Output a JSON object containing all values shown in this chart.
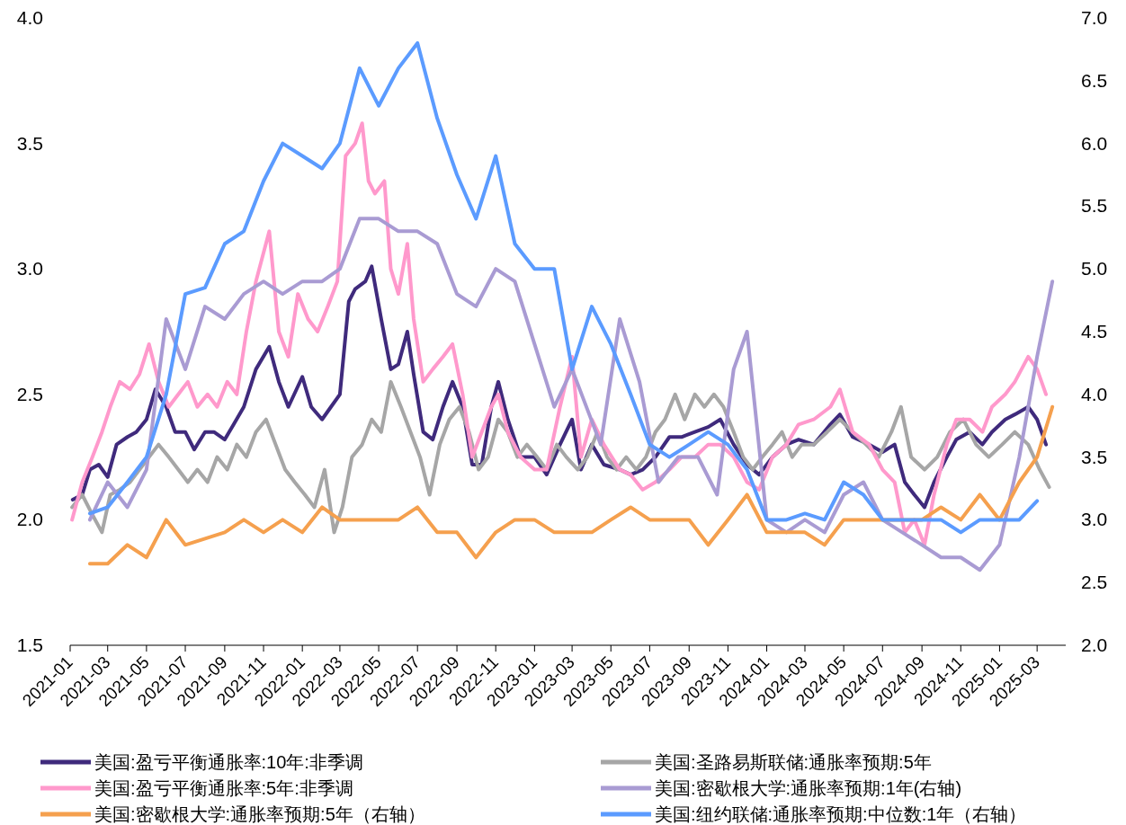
{
  "chart_data": {
    "type": "line",
    "xlim": [
      "2021-01-01",
      "2025-04-15"
    ],
    "xticks": [
      "2021-01",
      "2021-03",
      "2021-05",
      "2021-07",
      "2021-09",
      "2021-11",
      "2022-01",
      "2022-03",
      "2022-05",
      "2022-07",
      "2022-09",
      "2022-11",
      "2023-01",
      "2023-03",
      "2023-05",
      "2023-07",
      "2023-09",
      "2023-11",
      "2024-01",
      "2024-03",
      "2024-05",
      "2024-07",
      "2024-09",
      "2024-11",
      "2025-01",
      "2025-03"
    ],
    "ylim": [
      1.5,
      4.0
    ],
    "yticks": [
      {
        "value": 1.5,
        "label": "1.5"
      },
      {
        "value": 2,
        "label": "2.0"
      },
      {
        "value": 2.5,
        "label": "2.5"
      },
      {
        "value": 3,
        "label": "3.0"
      },
      {
        "value": 3.5,
        "label": "3.5"
      },
      {
        "value": 4,
        "label": "4.0"
      }
    ],
    "y2lim": [
      2.0,
      7.0
    ],
    "y2ticks": [
      {
        "value": 2,
        "label": "2.0"
      },
      {
        "value": 2.5,
        "label": "2.5"
      },
      {
        "value": 3,
        "label": "3.0"
      },
      {
        "value": 3.5,
        "label": "3.5"
      },
      {
        "value": 4,
        "label": "4.0"
      },
      {
        "value": 4.5,
        "label": "4.5"
      },
      {
        "value": 5,
        "label": "5.0"
      },
      {
        "value": 5.5,
        "label": "5.5"
      },
      {
        "value": 6,
        "label": "6.0"
      },
      {
        "value": 6.5,
        "label": "6.5"
      },
      {
        "value": 7,
        "label": "7.0"
      }
    ],
    "legend": "bottom",
    "series": [
      {
        "name": "美国:盈亏平衡通胀率:10年:非季调",
        "color": "#3f2a7c",
        "x": [
          "2021-01-05",
          "2021-01-20",
          "2021-02-01",
          "2021-02-15",
          "2021-03-01",
          "2021-03-15",
          "2021-04-01",
          "2021-04-15",
          "2021-05-01",
          "2021-05-15",
          "2021-06-01",
          "2021-06-15",
          "2021-07-01",
          "2021-07-15",
          "2021-08-01",
          "2021-08-15",
          "2021-09-01",
          "2021-09-15",
          "2021-10-01",
          "2021-10-20",
          "2021-11-10",
          "2021-11-25",
          "2021-12-10",
          "2022-01-01",
          "2022-01-15",
          "2022-02-01",
          "2022-02-15",
          "2022-03-01",
          "2022-03-15",
          "2022-03-25",
          "2022-04-10",
          "2022-04-20",
          "2022-05-05",
          "2022-05-20",
          "2022-06-01",
          "2022-06-15",
          "2022-06-25",
          "2022-07-10",
          "2022-07-25",
          "2022-08-10",
          "2022-08-25",
          "2022-09-10",
          "2022-09-25",
          "2022-10-10",
          "2022-10-25",
          "2022-11-05",
          "2022-11-20",
          "2022-12-10",
          "2023-01-01",
          "2023-01-20",
          "2023-02-10",
          "2023-03-01",
          "2023-03-15",
          "2023-04-01",
          "2023-04-20",
          "2023-05-15",
          "2023-06-01",
          "2023-06-20",
          "2023-07-10",
          "2023-08-01",
          "2023-08-20",
          "2023-09-10",
          "2023-10-01",
          "2023-10-20",
          "2023-11-10",
          "2023-12-01",
          "2023-12-20",
          "2024-01-10",
          "2024-02-01",
          "2024-02-20",
          "2024-03-15",
          "2024-04-10",
          "2024-04-25",
          "2024-05-15",
          "2024-06-10",
          "2024-07-01",
          "2024-07-20",
          "2024-08-05",
          "2024-08-20",
          "2024-09-05",
          "2024-09-20",
          "2024-10-10",
          "2024-10-25",
          "2024-11-15",
          "2024-12-05",
          "2024-12-20",
          "2025-01-10",
          "2025-01-25",
          "2025-02-15",
          "2025-03-01",
          "2025-03-15"
        ],
        "values": [
          2.08,
          2.1,
          2.2,
          2.22,
          2.17,
          2.3,
          2.33,
          2.35,
          2.4,
          2.52,
          2.45,
          2.35,
          2.35,
          2.28,
          2.35,
          2.35,
          2.32,
          2.38,
          2.45,
          2.6,
          2.69,
          2.55,
          2.45,
          2.57,
          2.45,
          2.4,
          2.45,
          2.5,
          2.87,
          2.92,
          2.95,
          3.01,
          2.8,
          2.6,
          2.62,
          2.75,
          2.58,
          2.35,
          2.32,
          2.45,
          2.55,
          2.45,
          2.22,
          2.22,
          2.45,
          2.55,
          2.4,
          2.25,
          2.25,
          2.18,
          2.3,
          2.4,
          2.2,
          2.3,
          2.22,
          2.2,
          2.18,
          2.2,
          2.25,
          2.33,
          2.33,
          2.35,
          2.37,
          2.4,
          2.3,
          2.22,
          2.18,
          2.25,
          2.3,
          2.32,
          2.3,
          2.38,
          2.42,
          2.33,
          2.3,
          2.27,
          2.3,
          2.15,
          2.1,
          2.05,
          2.15,
          2.25,
          2.32,
          2.35,
          2.3,
          2.35,
          2.4,
          2.42,
          2.45,
          2.4,
          2.3
        ]
      },
      {
        "name": "美国:圣路易斯联储:通胀率预期:5年",
        "color": "#a6a6a6",
        "x": [
          "2021-01-04",
          "2021-01-20",
          "2021-02-05",
          "2021-02-20",
          "2021-03-05",
          "2021-03-20",
          "2021-04-05",
          "2021-04-20",
          "2021-05-05",
          "2021-05-20",
          "2021-06-05",
          "2021-06-20",
          "2021-07-05",
          "2021-07-20",
          "2021-08-05",
          "2021-08-20",
          "2021-09-05",
          "2021-09-20",
          "2021-10-05",
          "2021-10-20",
          "2021-11-05",
          "2021-11-20",
          "2021-12-05",
          "2021-12-20",
          "2022-01-05",
          "2022-01-20",
          "2022-02-05",
          "2022-02-20",
          "2022-03-05",
          "2022-03-20",
          "2022-04-05",
          "2022-04-20",
          "2022-05-05",
          "2022-05-20",
          "2022-06-05",
          "2022-06-20",
          "2022-07-05",
          "2022-07-20",
          "2022-08-05",
          "2022-08-20",
          "2022-09-05",
          "2022-09-20",
          "2022-10-05",
          "2022-10-20",
          "2022-11-05",
          "2022-11-20",
          "2022-12-05",
          "2022-12-20",
          "2023-01-05",
          "2023-01-20",
          "2023-02-05",
          "2023-02-20",
          "2023-03-10",
          "2023-03-25",
          "2023-04-10",
          "2023-04-25",
          "2023-05-10",
          "2023-05-25",
          "2023-06-10",
          "2023-06-25",
          "2023-07-10",
          "2023-07-25",
          "2023-08-10",
          "2023-08-25",
          "2023-09-10",
          "2023-09-25",
          "2023-10-10",
          "2023-10-25",
          "2023-11-10",
          "2023-11-25",
          "2023-12-10",
          "2023-12-25",
          "2024-01-10",
          "2024-01-25",
          "2024-02-10",
          "2024-02-25",
          "2024-03-15",
          "2024-04-05",
          "2024-04-25",
          "2024-05-15",
          "2024-06-05",
          "2024-06-25",
          "2024-07-15",
          "2024-07-30",
          "2024-08-15",
          "2024-09-05",
          "2024-09-25",
          "2024-10-15",
          "2024-11-05",
          "2024-11-25",
          "2024-12-15",
          "2025-01-05",
          "2025-01-25",
          "2025-02-15",
          "2025-03-05",
          "2025-03-20"
        ],
        "values": [
          2.05,
          2.1,
          2.02,
          1.95,
          2.1,
          2.12,
          2.15,
          2.2,
          2.25,
          2.3,
          2.25,
          2.2,
          2.15,
          2.2,
          2.15,
          2.25,
          2.2,
          2.3,
          2.25,
          2.35,
          2.4,
          2.3,
          2.2,
          2.15,
          2.1,
          2.05,
          2.2,
          1.95,
          2.05,
          2.25,
          2.3,
          2.4,
          2.35,
          2.55,
          2.45,
          2.35,
          2.25,
          2.1,
          2.3,
          2.4,
          2.45,
          2.35,
          2.2,
          2.25,
          2.4,
          2.35,
          2.25,
          2.3,
          2.25,
          2.2,
          2.3,
          2.25,
          2.2,
          2.25,
          2.35,
          2.25,
          2.2,
          2.25,
          2.2,
          2.25,
          2.35,
          2.4,
          2.5,
          2.4,
          2.5,
          2.45,
          2.5,
          2.45,
          2.35,
          2.25,
          2.2,
          2.25,
          2.3,
          2.35,
          2.25,
          2.3,
          2.3,
          2.35,
          2.4,
          2.35,
          2.3,
          2.25,
          2.35,
          2.45,
          2.25,
          2.2,
          2.25,
          2.35,
          2.4,
          2.3,
          2.25,
          2.3,
          2.35,
          2.3,
          2.2,
          2.13
        ]
      },
      {
        "name": "美国:盈亏平衡通胀率:5年:非季调",
        "color": "#ff99cc",
        "x": [
          "2021-01-04",
          "2021-01-20",
          "2021-02-05",
          "2021-02-20",
          "2021-03-05",
          "2021-03-20",
          "2021-04-05",
          "2021-04-20",
          "2021-05-05",
          "2021-05-20",
          "2021-06-05",
          "2021-06-20",
          "2021-07-05",
          "2021-07-20",
          "2021-08-05",
          "2021-08-20",
          "2021-09-05",
          "2021-09-20",
          "2021-10-05",
          "2021-10-20",
          "2021-11-10",
          "2021-11-25",
          "2021-12-10",
          "2021-12-25",
          "2022-01-10",
          "2022-01-25",
          "2022-02-10",
          "2022-02-25",
          "2022-03-10",
          "2022-03-25",
          "2022-04-05",
          "2022-04-15",
          "2022-04-25",
          "2022-05-10",
          "2022-05-20",
          "2022-06-01",
          "2022-06-15",
          "2022-06-25",
          "2022-07-10",
          "2022-07-25",
          "2022-08-10",
          "2022-08-25",
          "2022-09-10",
          "2022-09-25",
          "2022-10-10",
          "2022-10-25",
          "2022-11-05",
          "2022-11-20",
          "2022-12-10",
          "2023-01-01",
          "2023-01-20",
          "2023-02-10",
          "2023-03-01",
          "2023-03-15",
          "2023-04-01",
          "2023-04-20",
          "2023-05-15",
          "2023-06-01",
          "2023-06-20",
          "2023-07-10",
          "2023-08-01",
          "2023-08-20",
          "2023-09-10",
          "2023-10-01",
          "2023-10-20",
          "2023-11-10",
          "2023-12-01",
          "2023-12-20",
          "2024-01-10",
          "2024-02-01",
          "2024-02-20",
          "2024-03-15",
          "2024-04-10",
          "2024-04-25",
          "2024-05-15",
          "2024-06-10",
          "2024-07-01",
          "2024-07-20",
          "2024-08-05",
          "2024-08-20",
          "2024-09-05",
          "2024-09-20",
          "2024-10-10",
          "2024-10-25",
          "2024-11-15",
          "2024-12-05",
          "2024-12-20",
          "2025-01-10",
          "2025-01-25",
          "2025-02-15",
          "2025-03-01",
          "2025-03-15"
        ],
        "values": [
          2.0,
          2.15,
          2.25,
          2.35,
          2.45,
          2.55,
          2.52,
          2.58,
          2.7,
          2.55,
          2.45,
          2.5,
          2.55,
          2.45,
          2.5,
          2.45,
          2.55,
          2.5,
          2.75,
          2.95,
          3.15,
          2.75,
          2.65,
          2.9,
          2.8,
          2.75,
          2.85,
          2.95,
          3.45,
          3.5,
          3.58,
          3.35,
          3.3,
          3.35,
          3.0,
          2.9,
          3.1,
          2.8,
          2.55,
          2.6,
          2.65,
          2.7,
          2.5,
          2.25,
          2.35,
          2.45,
          2.5,
          2.35,
          2.25,
          2.2,
          2.2,
          2.45,
          2.65,
          2.25,
          2.4,
          2.3,
          2.2,
          2.18,
          2.12,
          2.15,
          2.2,
          2.25,
          2.25,
          2.3,
          2.3,
          2.25,
          2.15,
          2.12,
          2.25,
          2.3,
          2.38,
          2.4,
          2.45,
          2.52,
          2.35,
          2.3,
          2.2,
          2.15,
          1.95,
          2.0,
          1.9,
          2.1,
          2.3,
          2.4,
          2.4,
          2.35,
          2.45,
          2.5,
          2.55,
          2.65,
          2.6,
          2.5
        ]
      },
      {
        "name": "美国:密歇根大学:通胀率预期:1年(右轴)",
        "color": "#a99bd3",
        "axis": "y2",
        "x": [
          "2021-02-01",
          "2021-03-01",
          "2021-04-01",
          "2021-05-01",
          "2021-06-01",
          "2021-07-01",
          "2021-08-01",
          "2021-09-01",
          "2021-10-01",
          "2021-11-01",
          "2021-12-01",
          "2022-01-01",
          "2022-02-01",
          "2022-03-01",
          "2022-04-01",
          "2022-05-01",
          "2022-06-01",
          "2022-07-01",
          "2022-08-01",
          "2022-09-01",
          "2022-10-01",
          "2022-11-01",
          "2022-12-01",
          "2023-01-01",
          "2023-02-01",
          "2023-03-01",
          "2023-04-15",
          "2023-05-15",
          "2023-06-15",
          "2023-07-15",
          "2023-08-15",
          "2023-09-15",
          "2023-10-15",
          "2023-11-10",
          "2023-12-01",
          "2024-01-01",
          "2024-02-01",
          "2024-03-01",
          "2024-04-01",
          "2024-05-01",
          "2024-06-01",
          "2024-07-01",
          "2024-08-01",
          "2024-09-01",
          "2024-10-01",
          "2024-11-01",
          "2024-12-01",
          "2025-01-01",
          "2025-02-01",
          "2025-03-01",
          "2025-03-25"
        ],
        "values": [
          3.0,
          3.3,
          3.1,
          3.4,
          4.6,
          4.2,
          4.7,
          4.6,
          4.8,
          4.9,
          4.8,
          4.9,
          4.9,
          5.0,
          5.4,
          5.4,
          5.3,
          5.3,
          5.2,
          4.8,
          4.7,
          5.0,
          4.9,
          4.4,
          3.9,
          4.2,
          3.6,
          4.6,
          4.1,
          3.3,
          3.5,
          3.5,
          3.2,
          4.2,
          4.5,
          3.0,
          2.9,
          3.0,
          2.9,
          3.2,
          3.3,
          3.0,
          2.9,
          2.8,
          2.7,
          2.7,
          2.6,
          2.8,
          3.5,
          4.3,
          4.9
        ]
      },
      {
        "name": "美国:密歇根大学:通胀率预期:5年（右轴）",
        "color": "#f5a04e",
        "axis": "y2",
        "x": [
          "2021-02-01",
          "2021-03-01",
          "2021-04-01",
          "2021-05-01",
          "2021-06-01",
          "2021-07-01",
          "2021-08-01",
          "2021-09-01",
          "2021-10-01",
          "2021-11-01",
          "2021-12-01",
          "2022-01-01",
          "2022-02-01",
          "2022-03-01",
          "2022-04-01",
          "2022-05-01",
          "2022-06-01",
          "2022-07-01",
          "2022-08-01",
          "2022-09-01",
          "2022-10-01",
          "2022-11-01",
          "2022-12-01",
          "2023-01-01",
          "2023-02-01",
          "2023-03-01",
          "2023-04-01",
          "2023-05-01",
          "2023-06-01",
          "2023-07-01",
          "2023-08-01",
          "2023-09-01",
          "2023-10-01",
          "2023-11-01",
          "2023-12-01",
          "2024-01-01",
          "2024-02-01",
          "2024-03-01",
          "2024-04-01",
          "2024-05-01",
          "2024-06-01",
          "2024-07-01",
          "2024-08-01",
          "2024-09-01",
          "2024-10-01",
          "2024-11-01",
          "2024-12-01",
          "2025-01-01",
          "2025-02-01",
          "2025-03-01",
          "2025-03-25"
        ],
        "values": [
          2.65,
          2.65,
          2.8,
          2.7,
          3.0,
          2.8,
          2.85,
          2.9,
          3.0,
          2.9,
          3.0,
          2.9,
          3.1,
          3.0,
          3.0,
          3.0,
          3.0,
          3.1,
          2.9,
          2.9,
          2.7,
          2.9,
          3.0,
          3.0,
          2.9,
          2.9,
          2.9,
          3.0,
          3.1,
          3.0,
          3.0,
          3.0,
          2.8,
          3.0,
          3.2,
          2.9,
          2.9,
          2.9,
          2.8,
          3.0,
          3.0,
          3.0,
          3.0,
          3.0,
          3.1,
          3.0,
          3.2,
          3.0,
          3.3,
          3.5,
          3.9
        ]
      },
      {
        "name": "美国:纽约联储:通胀率预期:中位数:1年（右轴）",
        "color": "#5b9bff",
        "axis": "y2",
        "x": [
          "2021-02-01",
          "2021-03-01",
          "2021-04-01",
          "2021-05-01",
          "2021-06-01",
          "2021-07-01",
          "2021-08-01",
          "2021-09-01",
          "2021-10-01",
          "2021-11-01",
          "2021-12-01",
          "2022-01-01",
          "2022-02-01",
          "2022-03-01",
          "2022-04-01",
          "2022-05-01",
          "2022-06-01",
          "2022-07-01",
          "2022-08-01",
          "2022-09-01",
          "2022-10-01",
          "2022-11-01",
          "2022-12-01",
          "2023-01-01",
          "2023-02-01",
          "2023-03-01",
          "2023-04-01",
          "2023-05-01",
          "2023-06-01",
          "2023-07-01",
          "2023-08-01",
          "2023-09-01",
          "2023-10-01",
          "2023-11-01",
          "2023-12-01",
          "2024-01-01",
          "2024-02-01",
          "2024-03-01",
          "2024-04-01",
          "2024-05-01",
          "2024-06-01",
          "2024-07-01",
          "2024-08-01",
          "2024-09-01",
          "2024-10-01",
          "2024-11-01",
          "2024-12-01",
          "2025-01-01",
          "2025-02-01",
          "2025-03-01"
        ],
        "values": [
          3.05,
          3.1,
          3.3,
          3.5,
          4.0,
          4.8,
          4.85,
          5.2,
          5.3,
          5.7,
          6.0,
          5.9,
          5.8,
          6.0,
          6.6,
          6.3,
          6.6,
          6.8,
          6.2,
          5.75,
          5.4,
          5.9,
          5.2,
          5.0,
          5.0,
          4.2,
          4.7,
          4.4,
          4.0,
          3.6,
          3.5,
          3.6,
          3.7,
          3.6,
          3.4,
          3.0,
          3.0,
          3.05,
          3.0,
          3.3,
          3.2,
          3.0,
          3.0,
          3.0,
          3.0,
          2.9,
          3.0,
          3.0,
          3.0,
          3.15
        ]
      }
    ]
  }
}
